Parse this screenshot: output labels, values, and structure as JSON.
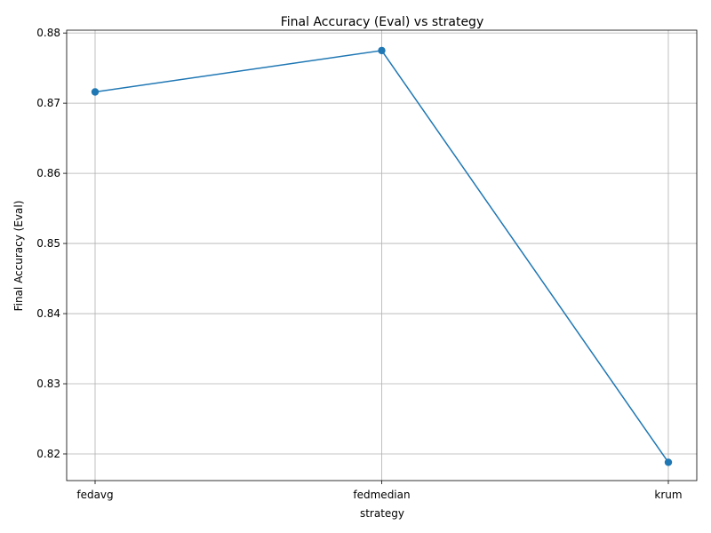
{
  "chart_data": {
    "type": "line",
    "title": "Final Accuracy (Eval) vs strategy",
    "xlabel": "strategy",
    "ylabel": "Final Accuracy (Eval)",
    "categories": [
      "fedavg",
      "fedmedian",
      "krum"
    ],
    "series": [
      {
        "values": [
          0.8716,
          0.8775,
          0.8188
        ],
        "color": "#1f77b4",
        "marker": "circle"
      }
    ],
    "ylim": [
      0.8162,
      0.8804
    ],
    "yticks": [
      0.82,
      0.83,
      0.84,
      0.85,
      0.86,
      0.87,
      0.88
    ],
    "ytick_labels": [
      "0.82",
      "0.83",
      "0.84",
      "0.85",
      "0.86",
      "0.87",
      "0.88"
    ],
    "grid": true,
    "legend": "none"
  }
}
